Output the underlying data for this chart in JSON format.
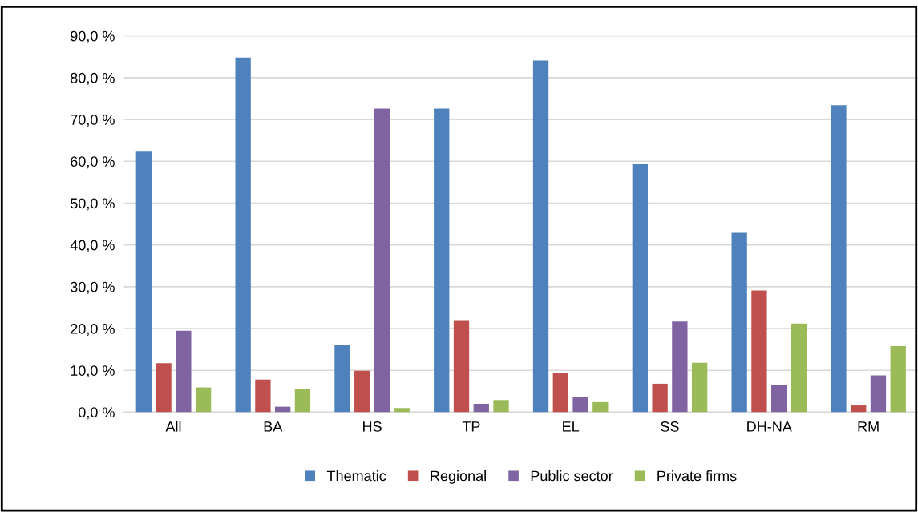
{
  "chart_data": {
    "type": "bar",
    "categories": [
      "All",
      "BA",
      "HS",
      "TP",
      "EL",
      "SS",
      "DH-NA",
      "RM"
    ],
    "series": [
      {
        "name": "Thematic",
        "color": "#4f81bd",
        "values": [
          62.3,
          84.8,
          16.0,
          72.6,
          84.1,
          59.3,
          42.9,
          73.4
        ]
      },
      {
        "name": "Regional",
        "color": "#c0504d",
        "values": [
          11.7,
          7.8,
          9.9,
          22.0,
          9.3,
          6.8,
          29.1,
          1.6
        ]
      },
      {
        "name": "Public sector",
        "color": "#8064a2",
        "values": [
          19.5,
          1.3,
          72.6,
          2.0,
          3.6,
          21.7,
          6.4,
          8.8
        ]
      },
      {
        "name": "Private firms",
        "color": "#9bbb59",
        "values": [
          5.9,
          5.5,
          1.0,
          2.9,
          2.4,
          11.8,
          21.2,
          15.8
        ]
      }
    ],
    "ylim": [
      0,
      90
    ],
    "yticks": [
      {
        "value": 0,
        "label": "0,0 %"
      },
      {
        "value": 10,
        "label": "10,0 %"
      },
      {
        "value": 20,
        "label": "20,0 %"
      },
      {
        "value": 30,
        "label": "30,0 %"
      },
      {
        "value": 40,
        "label": "40,0 %"
      },
      {
        "value": 50,
        "label": "50,0 %"
      },
      {
        "value": 60,
        "label": "60,0 %"
      },
      {
        "value": 70,
        "label": "70,0 %"
      },
      {
        "value": 80,
        "label": "80,0 %"
      },
      {
        "value": 90,
        "label": "90,0 %"
      }
    ],
    "grid": "y",
    "legend": "bottom"
  }
}
